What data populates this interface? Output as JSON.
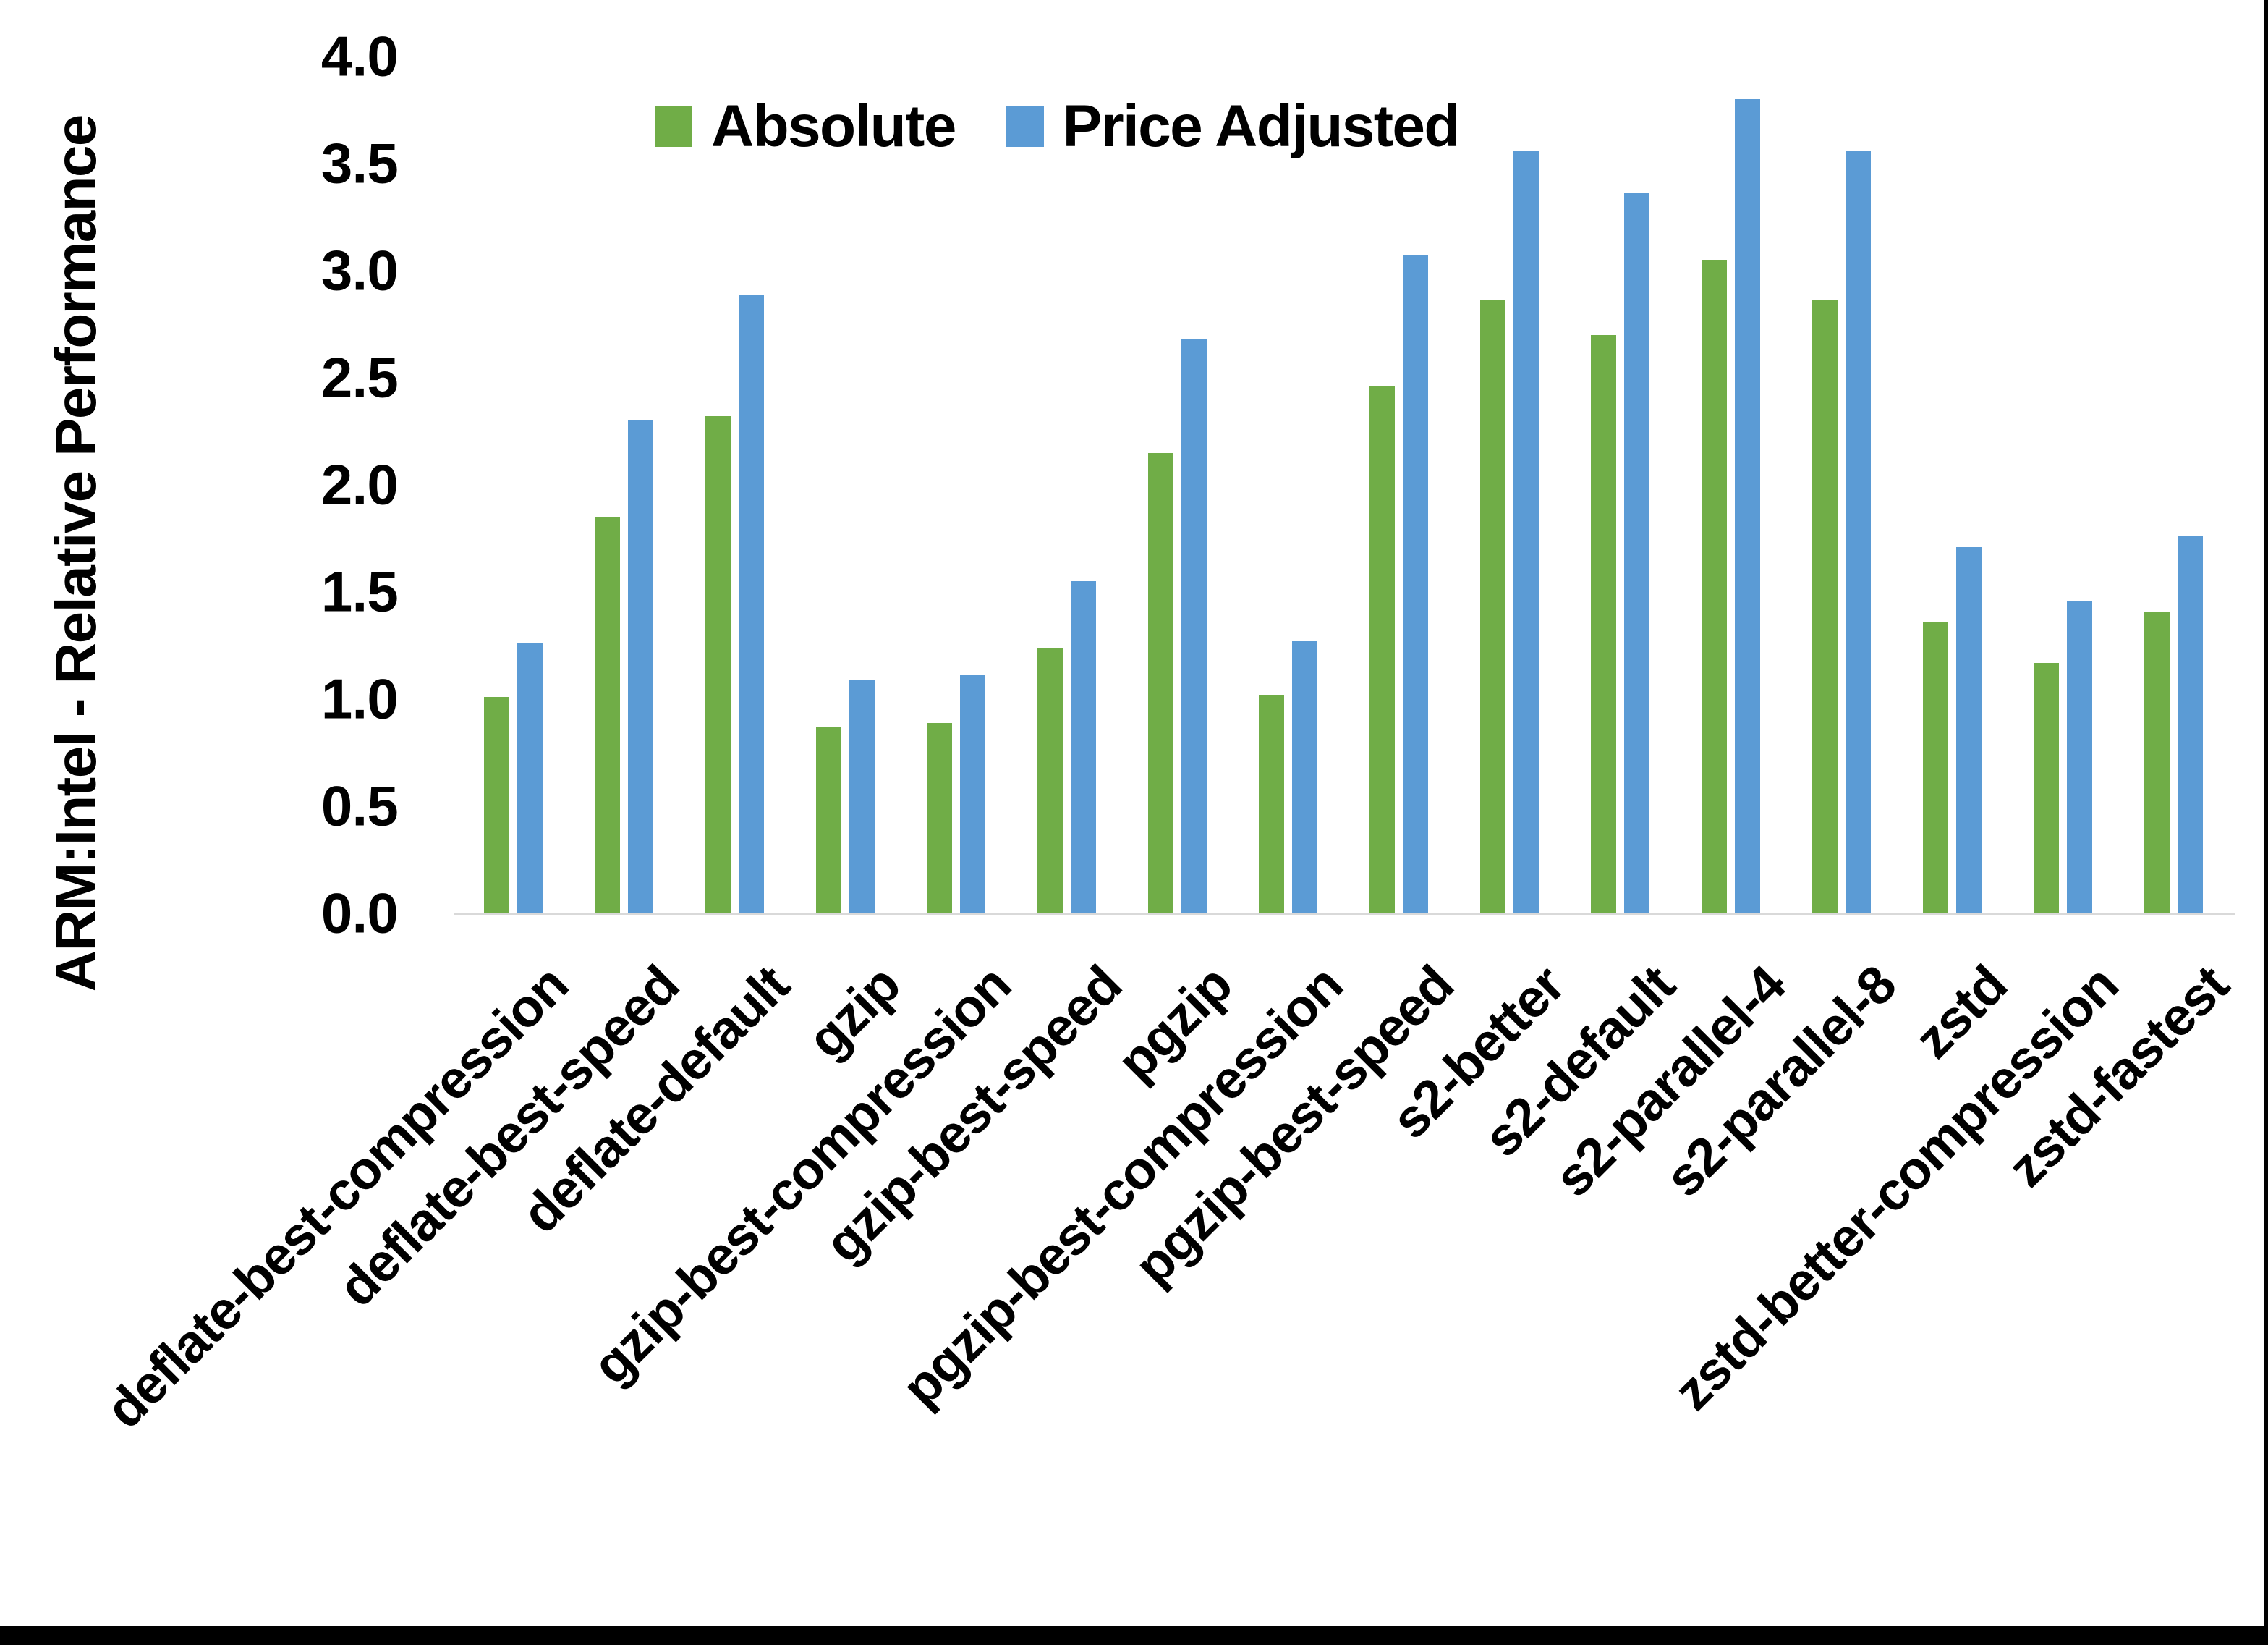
{
  "chart_data": {
    "type": "bar",
    "y_axis_title": "ARM:Intel - Relative Performance",
    "categories": [
      "deflate-best-compression",
      "deflate-best-speed",
      "deflate-default",
      "gzip",
      "gzip-best-compression",
      "gzip-best-speed",
      "pgzip",
      "pgzip-best-compression",
      "pgzip-best-speed",
      "s2-better",
      "s2-default",
      "s2-parallel-4",
      "s2-parallel-8",
      "zstd",
      "zstd-better-compression",
      "zstd-fastest"
    ],
    "series": [
      {
        "name": "Absolute",
        "color": "#70AD47",
        "values": [
          1.01,
          1.85,
          2.32,
          0.87,
          0.89,
          1.24,
          2.15,
          1.02,
          2.46,
          2.86,
          2.7,
          3.05,
          2.86,
          1.36,
          1.17,
          1.41
        ]
      },
      {
        "name": "Price Adjusted",
        "color": "#5B9BD5",
        "values": [
          1.26,
          2.3,
          2.89,
          1.09,
          1.11,
          1.55,
          2.68,
          1.27,
          3.07,
          3.56,
          3.36,
          3.8,
          3.56,
          1.71,
          1.46,
          1.76
        ]
      }
    ],
    "y_ticks": [
      "0.0",
      "0.5",
      "1.0",
      "1.5",
      "2.0",
      "2.5",
      "3.0",
      "3.5",
      "4.0"
    ],
    "ylim": [
      0,
      4
    ],
    "xlabel": "",
    "title": "",
    "legend_position": "top-center",
    "grid": false,
    "axis_line_color": "#D9D9D9"
  }
}
